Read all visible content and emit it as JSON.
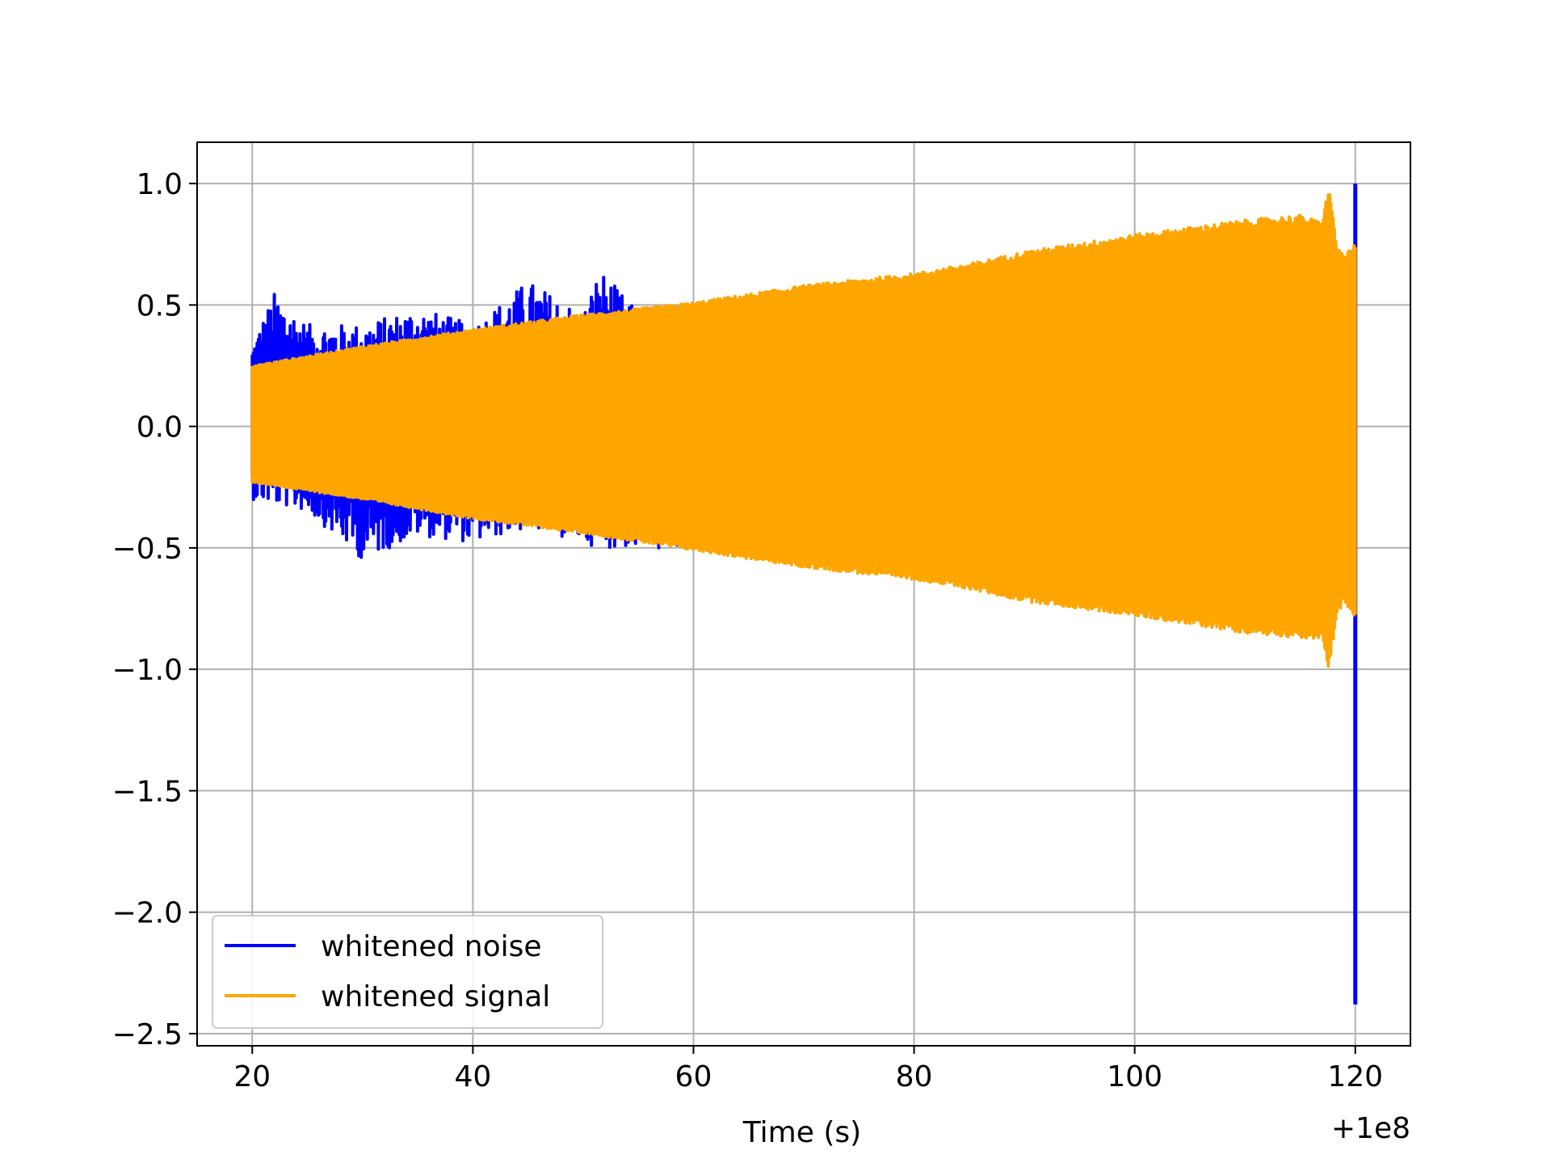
{
  "chart_data": {
    "type": "line",
    "title": "",
    "xlabel": "Time (s)",
    "ylabel": "",
    "x_offset_label": "+1e8",
    "xlim": [
      15,
      125
    ],
    "ylim": [
      -2.55,
      1.17
    ],
    "x_ticks": [
      20,
      40,
      60,
      80,
      100,
      120
    ],
    "x_tick_labels": [
      "20",
      "40",
      "60",
      "80",
      "100",
      "120"
    ],
    "y_ticks": [
      1.0,
      0.5,
      0.0,
      -0.5,
      -1.0,
      -1.5,
      -2.0,
      -2.5
    ],
    "y_tick_labels": [
      "1.0",
      "0.5",
      "0.0",
      "−0.5",
      "−1.0",
      "−1.5",
      "−2.0",
      "−2.5"
    ],
    "grid": true,
    "legend_position": "lower-left",
    "series": [
      {
        "name": "whitened noise",
        "color": "#0000ff",
        "envelope_x": [
          20,
          22,
          25,
          30,
          35,
          40,
          45,
          50,
          51.5,
          55,
          60,
          119.9
        ],
        "envelope_upper": [
          0.35,
          0.55,
          0.42,
          0.42,
          0.49,
          0.42,
          0.6,
          0.47,
          0.65,
          0.47,
          0.5,
          0.5
        ],
        "envelope_lower": [
          -0.3,
          -0.32,
          -0.35,
          -0.55,
          -0.45,
          -0.48,
          -0.42,
          -0.48,
          -0.5,
          -0.5,
          -0.52,
          -0.7
        ],
        "end_spike": {
          "x": 120,
          "max": 1.0,
          "min": -2.38
        }
      },
      {
        "name": "whitened signal",
        "color": "#ffa500",
        "envelope_x": [
          20,
          30,
          40,
          50,
          60,
          70,
          80,
          85,
          90,
          100,
          110,
          115,
          117,
          117.6,
          118.3,
          119,
          120
        ],
        "envelope_upper": [
          0.25,
          0.33,
          0.4,
          0.46,
          0.51,
          0.58,
          0.63,
          0.67,
          0.72,
          0.79,
          0.85,
          0.87,
          0.84,
          1.0,
          0.75,
          0.7,
          0.75
        ],
        "envelope_lower": [
          -0.23,
          -0.3,
          -0.38,
          -0.44,
          -0.51,
          -0.58,
          -0.63,
          -0.67,
          -0.72,
          -0.78,
          -0.85,
          -0.87,
          -0.88,
          -1.0,
          -0.78,
          -0.72,
          -0.8
        ]
      }
    ]
  }
}
